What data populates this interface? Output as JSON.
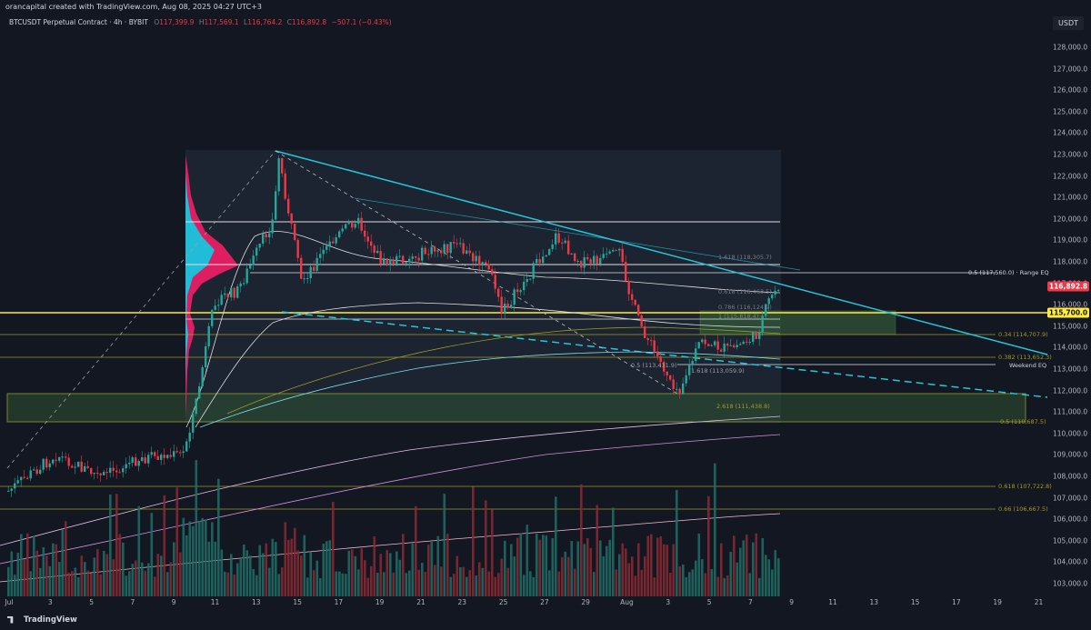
{
  "header": {
    "credit": "orancapital created with TradingView.com, Aug 08, 2025 04:27 UTC+3",
    "symbol": "BTCUSDT Perpetual Contract · 4h · BYBIT",
    "o_label": "O",
    "o_value": "117,399.9",
    "h_label": "H",
    "h_value": "117,569.1",
    "l_label": "L",
    "l_value": "116,764.2",
    "c_label": "C",
    "c_value": "116,892.8",
    "change": "−507.1 (−0.43%)"
  },
  "currency": "USDT",
  "price_axis": {
    "labels": [
      "128,000.0",
      "127,000.0",
      "126,000.0",
      "125,000.0",
      "124,000.0",
      "123,000.0",
      "122,000.0",
      "121,000.0",
      "120,000.0",
      "119,000.0",
      "118,000.0",
      "117,000.0",
      "116,000.0",
      "115,000.0",
      "114,000.0",
      "113,000.0",
      "112,000.0",
      "111,000.0",
      "110,000.0",
      "109,000.0",
      "108,000.0",
      "107,000.0",
      "106,000.0",
      "105,000.0",
      "104,000.0",
      "103,000.0"
    ],
    "current_price": "116,892.8",
    "level_price": "115,700.0"
  },
  "time_axis": {
    "labels": [
      "Jul",
      "3",
      "5",
      "7",
      "9",
      "11",
      "13",
      "15",
      "17",
      "19",
      "21",
      "23",
      "25",
      "27",
      "29",
      "Aug",
      "3",
      "5",
      "7",
      "9",
      "11",
      "13",
      "15",
      "17",
      "19",
      "21"
    ]
  },
  "annotations": {
    "range_eq": "0.5 (117,560.0) · Range EQ",
    "fib_1618_top": "1.618 (118,305.7)",
    "fib_034": "0.34 (114,707.9)",
    "fib_0382": "0.382 (113,652.3)",
    "weekend_eq": "Weekend EQ",
    "fib_05_mid": "0.5 (113,431.9)",
    "fib_1618_low": "1.618 (113,059.9)",
    "fib_2618": "2.618 (111,438.8)",
    "fib_05_low": "0.5 (110,687.5)",
    "fib_0618": "0.618 (107,722.8)",
    "fib_066": "0.66 (106,667.5)",
    "fib_0618_small": "0.618 (116,463.5)",
    "fib_0786": "0.786 (116,124.9)",
    "fib_1": "1 (115,818.4)"
  },
  "footer": {
    "brand": "TradingView"
  },
  "colors": {
    "background": "#131722",
    "up": "#26a69a",
    "down": "#f23645",
    "trendline": "#26c6da",
    "level": "#ffeb3b",
    "zone": "#4caf50"
  }
}
